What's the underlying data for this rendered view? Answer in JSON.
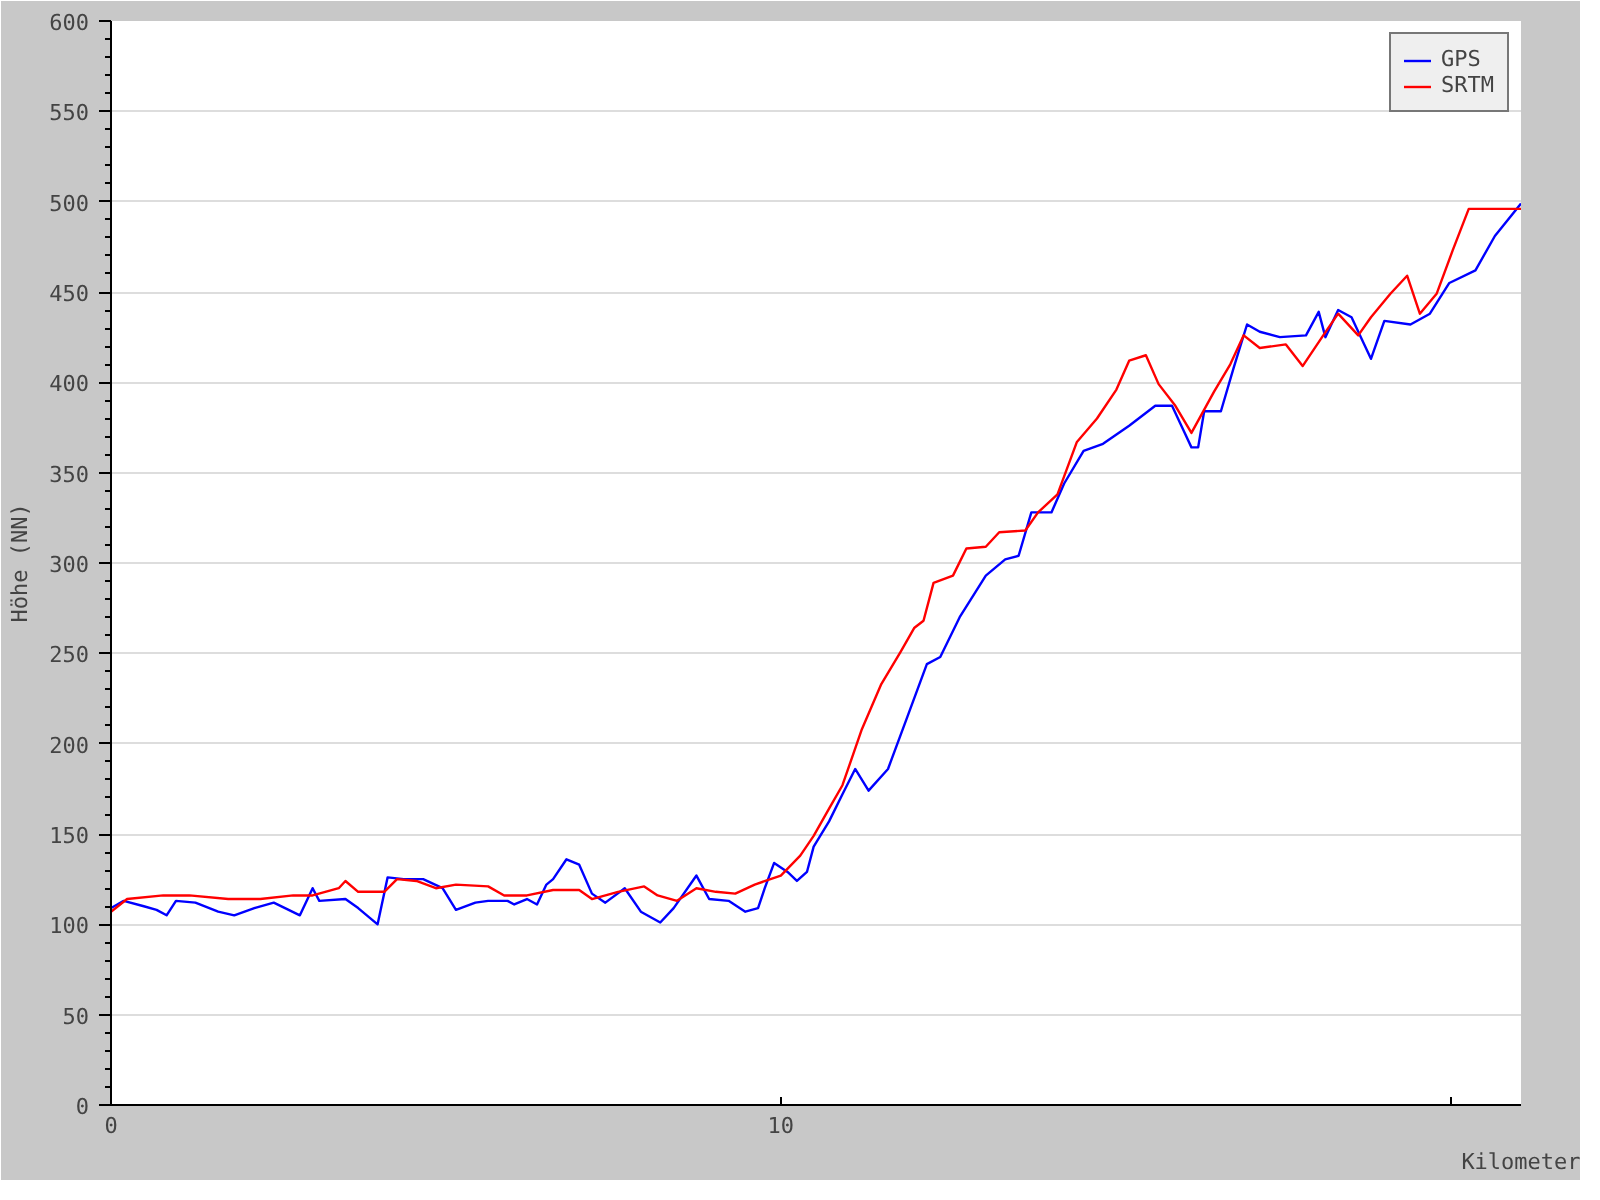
{
  "chart_data": {
    "type": "line",
    "xlabel": "Kilometer",
    "ylabel": "Höhe (NN)",
    "xlim": [
      0,
      21.05
    ],
    "xticks": [
      0,
      10,
      {
        "value": 20,
        "label": null
      }
    ],
    "ylim": [
      0,
      600
    ],
    "yticks": [
      0,
      50,
      100,
      150,
      200,
      250,
      300,
      350,
      400,
      450,
      500,
      550,
      600
    ],
    "grid": "y",
    "legend": "top right",
    "line_style": "solid",
    "marker": "none",
    "series": [
      {
        "name": "GPS",
        "color": "#0000ff",
        "x": [
          0,
          0.19,
          0.49,
          0.68,
          0.83,
          0.97,
          1.26,
          1.6,
          1.84,
          2.14,
          2.43,
          2.82,
          3.01,
          3.11,
          3.5,
          3.69,
          3.98,
          4.13,
          4.37,
          4.66,
          4.95,
          5.15,
          5.44,
          5.63,
          5.92,
          6.02,
          6.21,
          6.36,
          6.5,
          6.6,
          6.8,
          6.99,
          7.18,
          7.38,
          7.67,
          7.91,
          8.2,
          8.4,
          8.74,
          8.93,
          9.22,
          9.47,
          9.66,
          9.76,
          9.9,
          10.1,
          10.24,
          10.39,
          10.49,
          10.72,
          10.92,
          11.11,
          11.31,
          11.6,
          11.89,
          12.18,
          12.38,
          12.67,
          13.06,
          13.35,
          13.55,
          13.74,
          14.04,
          14.23,
          14.52,
          14.81,
          15.2,
          15.59,
          15.84,
          16.03,
          16.13,
          16.23,
          16.32,
          16.57,
          16.76,
          16.96,
          17.15,
          17.45,
          17.84,
          18.03,
          18.13,
          18.32,
          18.52,
          18.71,
          18.81,
          19.01,
          19.4,
          19.69,
          19.98,
          20.37,
          20.66,
          21.05
        ],
        "values": [
          109,
          113,
          110,
          108,
          105,
          113,
          112,
          107,
          105,
          109,
          112,
          105,
          120,
          113,
          114,
          109,
          100,
          126,
          125,
          125,
          120,
          108,
          112,
          113,
          113,
          111,
          114,
          111,
          122,
          125,
          136,
          133,
          117,
          112,
          120,
          107,
          101,
          109,
          127,
          114,
          113,
          107,
          109,
          120,
          134,
          129,
          124,
          129,
          143,
          157,
          172,
          186,
          174,
          186,
          215,
          244,
          248,
          270,
          293,
          302,
          304,
          328,
          328,
          344,
          362,
          366,
          376,
          387,
          387,
          372,
          364,
          364,
          384,
          384,
          408,
          432,
          428,
          425,
          426,
          439,
          425,
          440,
          436,
          421,
          413,
          434,
          432,
          438,
          455,
          462,
          481,
          499
        ]
      },
      {
        "name": "SRTM",
        "color": "#ff0000",
        "x": [
          0,
          0.24,
          0.78,
          1.17,
          1.75,
          2.23,
          2.72,
          3.01,
          3.4,
          3.5,
          3.69,
          4.08,
          4.27,
          4.56,
          4.85,
          5.15,
          5.63,
          5.87,
          6.21,
          6.6,
          6.99,
          7.18,
          7.57,
          7.96,
          8.16,
          8.45,
          8.74,
          9.03,
          9.32,
          9.61,
          10.0,
          10.29,
          10.49,
          10.72,
          10.92,
          11.21,
          11.5,
          11.79,
          11.99,
          12.13,
          12.28,
          12.57,
          12.77,
          13.06,
          13.26,
          13.65,
          13.84,
          14.13,
          14.42,
          14.72,
          15.01,
          15.2,
          15.45,
          15.64,
          15.89,
          16.13,
          16.47,
          16.71,
          16.91,
          17.15,
          17.54,
          17.79,
          18.08,
          18.32,
          18.62,
          18.81,
          19.1,
          19.35,
          19.54,
          19.79,
          20.03,
          20.27,
          21.05
        ],
        "values": [
          107,
          114,
          116,
          116,
          114,
          114,
          116,
          116,
          120,
          124,
          118,
          118,
          125,
          124,
          120,
          122,
          121,
          116,
          116,
          119,
          119,
          114,
          118,
          121,
          116,
          113,
          120,
          118,
          117,
          122,
          127,
          138,
          149,
          164,
          177,
          208,
          233,
          251,
          264,
          268,
          289,
          293,
          308,
          309,
          317,
          318,
          328,
          338,
          367,
          380,
          396,
          412,
          415,
          399,
          387,
          372,
          395,
          410,
          426,
          419,
          421,
          409,
          425,
          438,
          426,
          436,
          449,
          459,
          438,
          449,
          473,
          496,
          496
        ]
      }
    ]
  }
}
